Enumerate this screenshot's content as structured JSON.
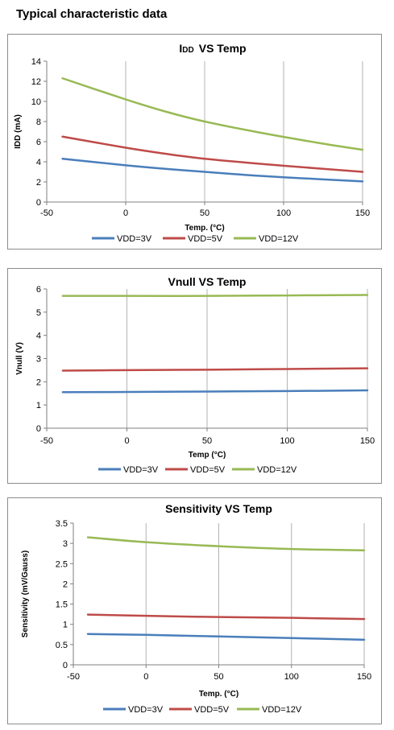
{
  "page": {
    "heading": "Typical characteristic data"
  },
  "colors": {
    "VDD=3V": "#4a7ebb",
    "VDD=5V": "#be4b48",
    "VDD=12V": "#98b954"
  },
  "chart_data": [
    {
      "type": "line",
      "title_main": "I",
      "title_sub": "DD",
      "title_rest": "VS Temp",
      "xlabel": "Temp. (°C)",
      "ylabel": "IDD (mA)",
      "xlim": [
        -50,
        150
      ],
      "ylim": [
        0,
        14
      ],
      "xticks": [
        -50,
        0,
        50,
        100,
        150
      ],
      "yticks": [
        0,
        2,
        4,
        6,
        8,
        10,
        12,
        14
      ],
      "grid": "vertical",
      "legend": "bottom",
      "series": [
        {
          "name": "VDD=3V",
          "x": [
            -40,
            0,
            25,
            50,
            85,
            125,
            150
          ],
          "y": [
            4.3,
            3.65,
            3.3,
            3.0,
            2.6,
            2.25,
            2.05
          ]
        },
        {
          "name": "VDD=5V",
          "x": [
            -40,
            0,
            25,
            50,
            85,
            125,
            150
          ],
          "y": [
            6.5,
            5.4,
            4.8,
            4.3,
            3.8,
            3.3,
            3.0
          ]
        },
        {
          "name": "VDD=12V",
          "x": [
            -40,
            0,
            25,
            50,
            85,
            125,
            150
          ],
          "y": [
            12.3,
            10.2,
            9.0,
            8.0,
            6.9,
            5.8,
            5.2
          ]
        }
      ]
    },
    {
      "type": "line",
      "title_main": "Vnull  VS  Temp",
      "xlabel": "Temp (°C)",
      "ylabel": "Vnull (V)",
      "xlim": [
        -50,
        150
      ],
      "ylim": [
        0,
        6
      ],
      "xticks": [
        -50,
        0,
        50,
        100,
        150
      ],
      "yticks": [
        0,
        1,
        2,
        3,
        4,
        5,
        6
      ],
      "grid": "vertical",
      "legend": "bottom",
      "series": [
        {
          "name": "VDD=3V",
          "x": [
            -40,
            0,
            50,
            100,
            150
          ],
          "y": [
            1.55,
            1.56,
            1.58,
            1.6,
            1.63
          ]
        },
        {
          "name": "VDD=5V",
          "x": [
            -40,
            0,
            50,
            100,
            150
          ],
          "y": [
            2.48,
            2.5,
            2.52,
            2.55,
            2.58
          ]
        },
        {
          "name": "VDD=12V",
          "x": [
            -40,
            0,
            50,
            100,
            150
          ],
          "y": [
            5.7,
            5.7,
            5.7,
            5.72,
            5.74
          ]
        }
      ]
    },
    {
      "type": "line",
      "title_main": "Sensitivity  VS  Temp",
      "xlabel": "Temp. (°C)",
      "ylabel": "Sensitivity (mV/Gauss)",
      "xlim": [
        -50,
        150
      ],
      "ylim": [
        0,
        3.5
      ],
      "xticks": [
        -50,
        0,
        50,
        100,
        150
      ],
      "yticks": [
        0,
        0.5,
        1,
        1.5,
        2,
        2.5,
        3,
        3.5
      ],
      "grid": "vertical",
      "legend": "bottom",
      "series": [
        {
          "name": "VDD=3V",
          "x": [
            -40,
            0,
            50,
            100,
            150
          ],
          "y": [
            0.76,
            0.74,
            0.7,
            0.66,
            0.62
          ]
        },
        {
          "name": "VDD=5V",
          "x": [
            -40,
            0,
            50,
            100,
            150
          ],
          "y": [
            1.24,
            1.21,
            1.18,
            1.16,
            1.13
          ]
        },
        {
          "name": "VDD=12V",
          "x": [
            -40,
            0,
            50,
            100,
            150
          ],
          "y": [
            3.15,
            3.03,
            2.93,
            2.86,
            2.83
          ]
        }
      ]
    }
  ]
}
